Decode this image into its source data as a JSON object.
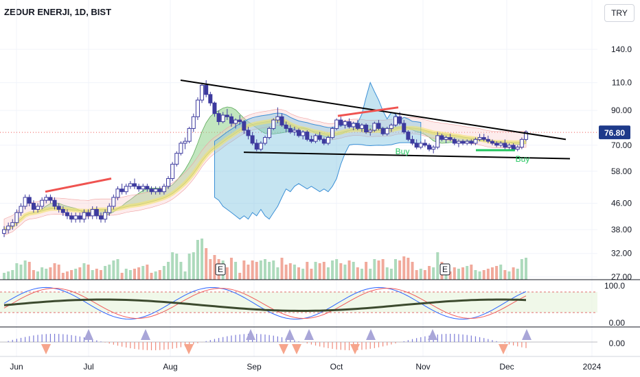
{
  "header": {
    "title": "ZEDUR ENERJI, 1D, BIST",
    "currency": "TRY"
  },
  "chart_data": {
    "type": "candlestick",
    "symbol": "ZEDUR ENERJI",
    "timeframe": "1D",
    "exchange": "BIST",
    "currency": "TRY",
    "last_price": "76.80",
    "price_ticks": [
      "140.0",
      "110.0",
      "90.00",
      "70.00",
      "58.00",
      "46.00",
      "38.00",
      "32.00",
      "27.00"
    ],
    "price_tick_values": [
      140,
      110,
      90,
      70,
      58,
      46,
      38,
      32,
      27
    ],
    "x_ticks": [
      "Jun",
      "Jul",
      "Aug",
      "Sep",
      "Oct",
      "Nov",
      "Dec",
      "2024"
    ],
    "y_scale": "log",
    "osc1_ticks": [
      "100.0",
      "0.00"
    ],
    "osc2_ticks": [
      "0.00"
    ],
    "earnings_markers": [
      "E",
      "E"
    ],
    "signals": [
      "Buy",
      "Buy"
    ],
    "candles": [
      [
        37,
        39,
        36,
        38
      ],
      [
        38,
        40,
        37,
        39
      ],
      [
        39,
        41,
        38,
        40
      ],
      [
        40,
        44,
        39,
        43
      ],
      [
        43,
        46,
        42,
        45
      ],
      [
        45,
        49,
        44,
        48
      ],
      [
        48,
        49,
        45,
        46
      ],
      [
        46,
        47,
        43,
        44
      ],
      [
        44,
        46,
        43,
        45
      ],
      [
        45,
        48,
        44,
        47
      ],
      [
        47,
        49,
        46,
        48
      ],
      [
        48,
        49,
        46,
        47
      ],
      [
        47,
        48,
        44,
        45
      ],
      [
        45,
        46,
        43,
        44
      ],
      [
        44,
        45,
        42,
        43
      ],
      [
        43,
        44,
        41,
        42
      ],
      [
        42,
        43,
        40,
        41
      ],
      [
        41,
        43,
        40,
        42
      ],
      [
        42,
        43,
        40,
        41
      ],
      [
        41,
        44,
        40,
        43
      ],
      [
        43,
        44,
        41,
        42
      ],
      [
        42,
        45,
        41,
        44
      ],
      [
        44,
        45,
        41,
        42
      ],
      [
        42,
        43,
        40,
        41
      ],
      [
        41,
        44,
        40,
        43
      ],
      [
        43,
        46,
        42,
        45
      ],
      [
        45,
        49,
        44,
        48
      ],
      [
        48,
        52,
        47,
        51
      ],
      [
        51,
        53,
        49,
        50
      ],
      [
        50,
        53,
        49,
        52
      ],
      [
        52,
        54,
        51,
        53
      ],
      [
        53,
        55,
        51,
        52
      ],
      [
        52,
        53,
        50,
        51
      ],
      [
        51,
        53,
        50,
        52
      ],
      [
        52,
        53,
        50,
        51
      ],
      [
        51,
        52,
        49,
        50
      ],
      [
        50,
        52,
        49,
        51
      ],
      [
        51,
        52,
        49,
        50
      ],
      [
        50,
        53,
        49,
        52
      ],
      [
        52,
        56,
        51,
        55
      ],
      [
        55,
        62,
        54,
        61
      ],
      [
        61,
        67,
        60,
        66
      ],
      [
        66,
        72,
        65,
        71
      ],
      [
        71,
        74,
        68,
        72
      ],
      [
        72,
        80,
        71,
        79
      ],
      [
        79,
        88,
        77,
        86
      ],
      [
        86,
        99,
        84,
        97
      ],
      [
        97,
        110,
        95,
        108
      ],
      [
        108,
        112,
        99,
        101
      ],
      [
        101,
        103,
        93,
        95
      ],
      [
        95,
        96,
        86,
        88
      ],
      [
        88,
        90,
        81,
        83
      ],
      [
        83,
        89,
        82,
        87
      ],
      [
        87,
        91,
        84,
        86
      ],
      [
        86,
        88,
        80,
        82
      ],
      [
        82,
        85,
        79,
        84
      ],
      [
        84,
        87,
        81,
        83
      ],
      [
        83,
        84,
        76,
        78
      ],
      [
        78,
        80,
        73,
        75
      ],
      [
        75,
        77,
        70,
        71
      ],
      [
        71,
        73,
        67,
        68
      ],
      [
        68,
        72,
        67,
        71
      ],
      [
        71,
        75,
        70,
        74
      ],
      [
        74,
        80,
        73,
        79
      ],
      [
        79,
        85,
        78,
        84
      ],
      [
        84,
        92,
        82,
        86
      ],
      [
        86,
        88,
        80,
        81
      ],
      [
        81,
        83,
        77,
        79
      ],
      [
        79,
        81,
        76,
        77
      ],
      [
        77,
        80,
        75,
        78
      ],
      [
        78,
        79,
        74,
        75
      ],
      [
        75,
        78,
        73,
        77
      ],
      [
        77,
        78,
        72,
        73
      ],
      [
        73,
        75,
        71,
        72
      ],
      [
        72,
        76,
        71,
        75
      ],
      [
        75,
        77,
        72,
        73
      ],
      [
        73,
        74,
        70,
        71
      ],
      [
        71,
        75,
        70,
        74
      ],
      [
        74,
        80,
        73,
        79
      ],
      [
        79,
        85,
        78,
        84
      ],
      [
        84,
        86,
        80,
        81
      ],
      [
        81,
        84,
        79,
        83
      ],
      [
        83,
        85,
        79,
        80
      ],
      [
        80,
        83,
        78,
        82
      ],
      [
        82,
        84,
        78,
        79
      ],
      [
        79,
        82,
        77,
        81
      ],
      [
        81,
        82,
        76,
        77
      ],
      [
        77,
        79,
        75,
        78
      ],
      [
        78,
        83,
        77,
        82
      ],
      [
        82,
        84,
        78,
        79
      ],
      [
        79,
        80,
        75,
        76
      ],
      [
        76,
        80,
        75,
        79
      ],
      [
        79,
        82,
        77,
        81
      ],
      [
        81,
        88,
        80,
        86
      ],
      [
        86,
        89,
        81,
        82
      ],
      [
        82,
        84,
        76,
        77
      ],
      [
        77,
        78,
        72,
        73
      ],
      [
        73,
        75,
        70,
        71
      ],
      [
        71,
        73,
        68,
        69
      ],
      [
        69,
        72,
        68,
        71
      ],
      [
        71,
        73,
        69,
        70
      ],
      [
        70,
        71,
        67,
        68
      ],
      [
        68,
        70,
        66,
        69
      ],
      [
        69,
        77,
        68,
        75
      ],
      [
        75,
        76,
        72,
        73
      ],
      [
        73,
        75,
        71,
        74
      ],
      [
        74,
        76,
        72,
        73
      ],
      [
        73,
        74,
        70,
        71
      ],
      [
        71,
        73,
        69,
        72
      ],
      [
        72,
        73,
        70,
        71
      ],
      [
        71,
        73,
        70,
        72
      ],
      [
        72,
        73,
        70,
        71
      ],
      [
        71,
        74,
        70,
        73
      ],
      [
        73,
        76,
        72,
        74
      ],
      [
        74,
        76,
        72,
        73
      ],
      [
        73,
        75,
        71,
        72
      ],
      [
        72,
        73,
        70,
        71
      ],
      [
        71,
        72,
        69,
        70
      ],
      [
        70,
        72,
        69,
        71
      ],
      [
        71,
        73,
        68,
        69
      ],
      [
        69,
        71,
        68,
        70
      ],
      [
        70,
        71,
        67,
        68
      ],
      [
        68,
        70,
        67,
        69
      ],
      [
        69,
        74,
        68,
        73
      ],
      [
        73,
        78,
        72,
        77
      ]
    ],
    "volume_down_colors": "#ef9a8a",
    "colors": {
      "up": "#3d3a9e",
      "down": "#3d3a9e",
      "trendline": "#000000",
      "red_line": "#ef5350",
      "green_line": "#22c55e",
      "cloud_pink": "#f8c8c8",
      "cloud_blue": "#7ec3e0",
      "cloud_green": "#8fd18a",
      "last_price_bg": "#1e3a8a"
    }
  }
}
